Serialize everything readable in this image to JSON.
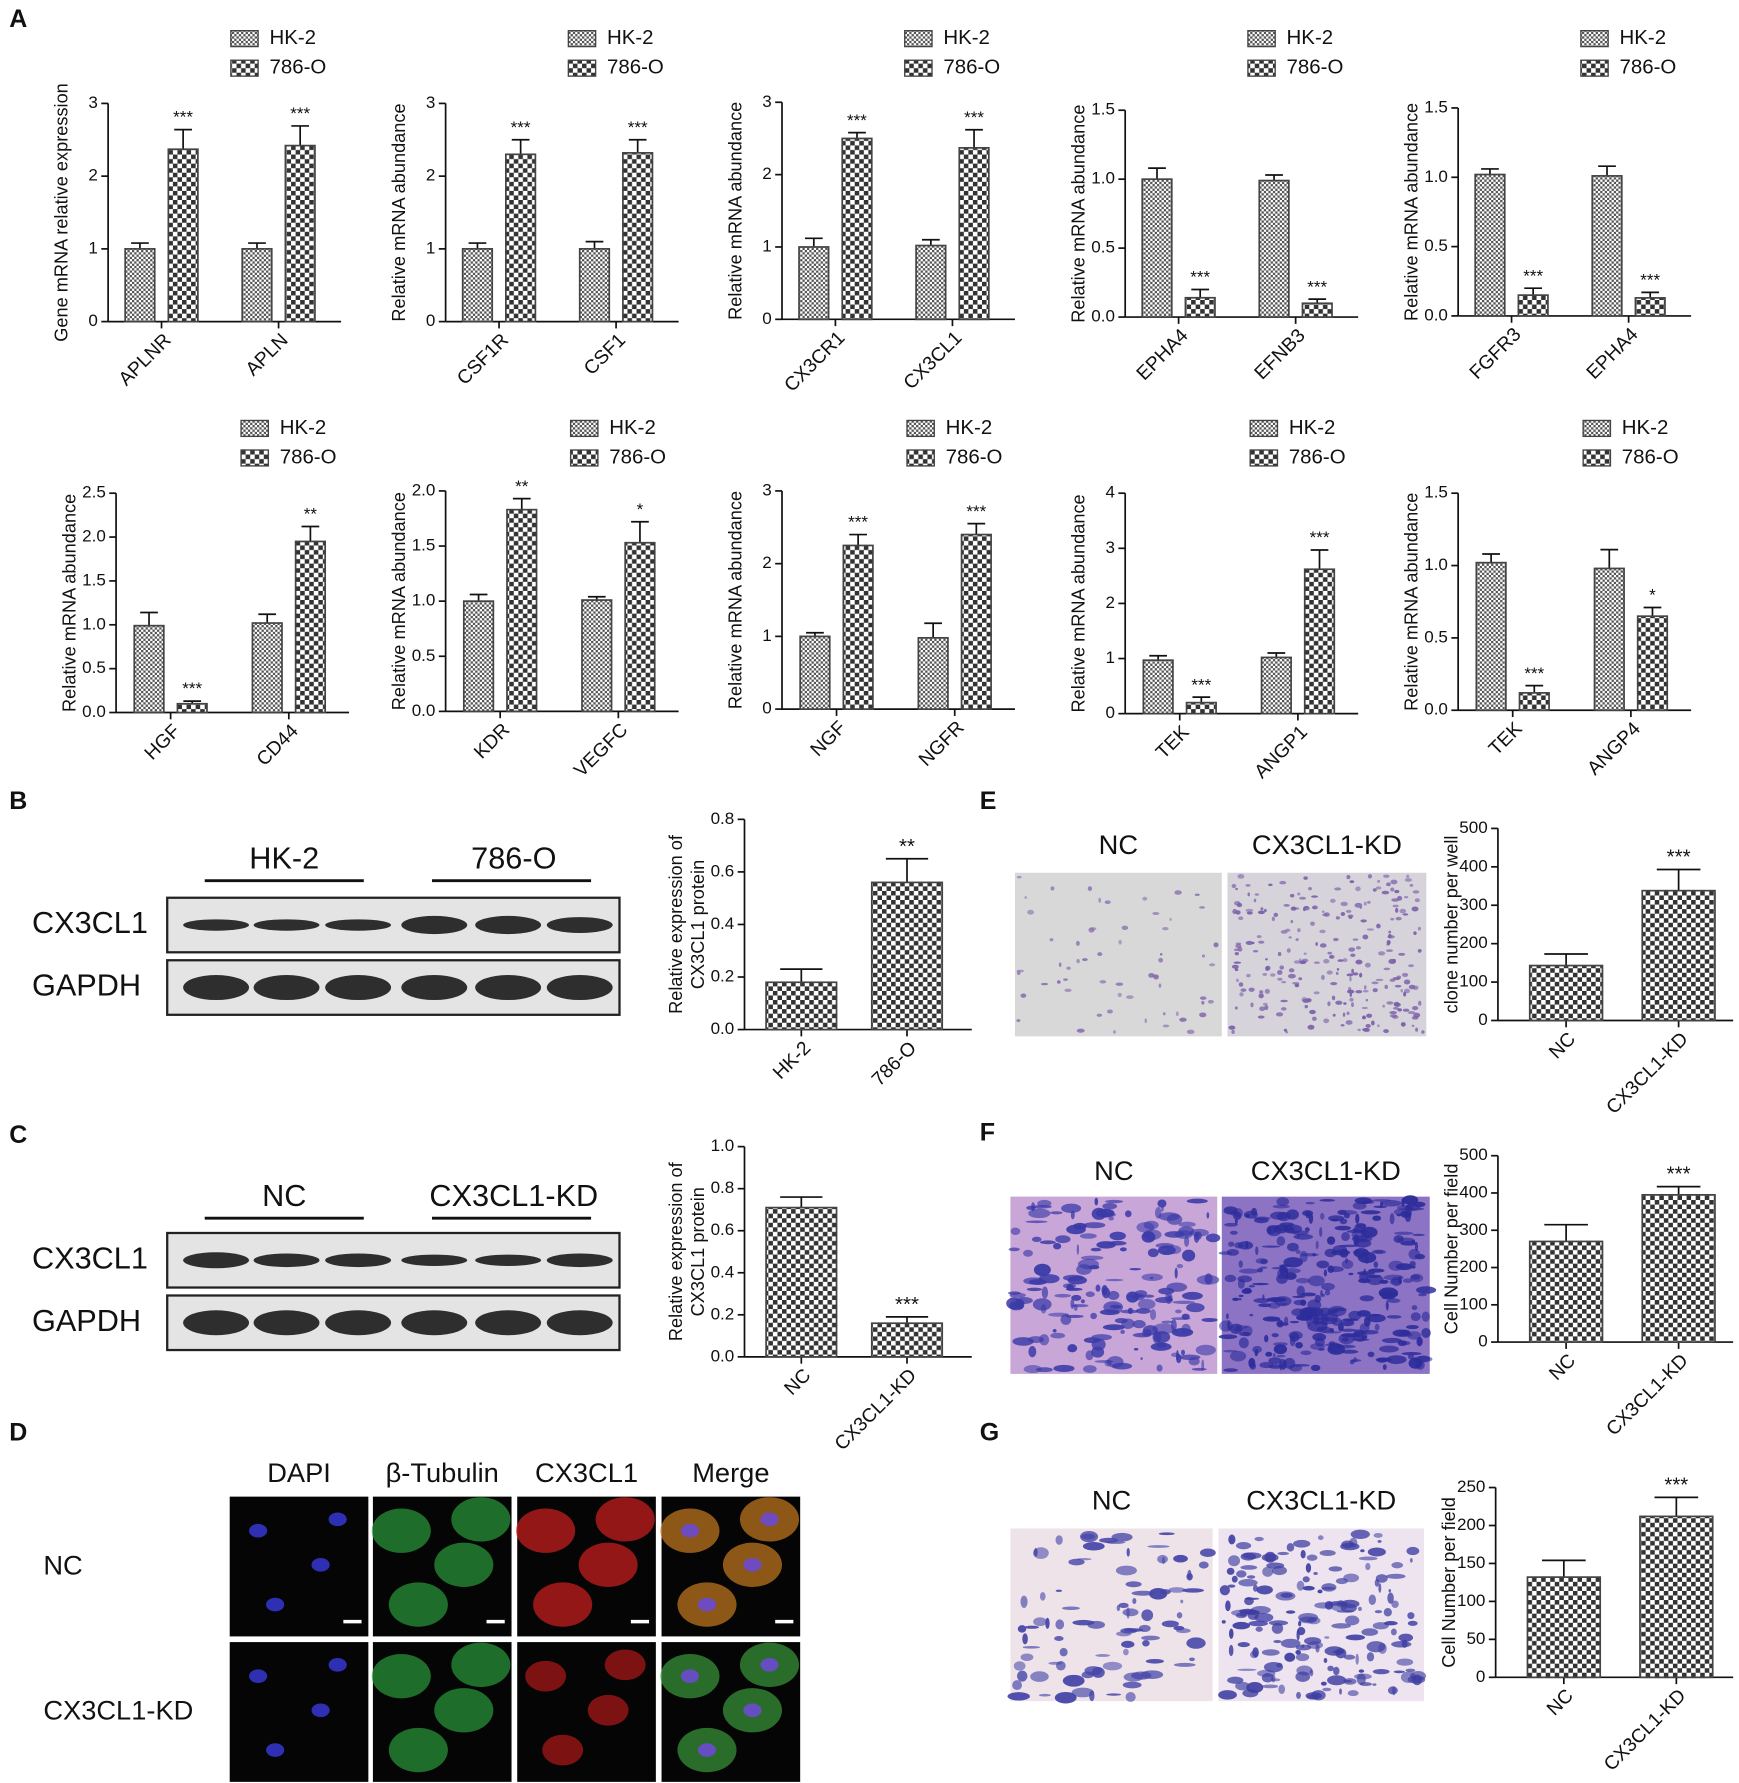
{
  "panel_labels": [
    "A",
    "B",
    "C",
    "D",
    "E",
    "F",
    "G"
  ],
  "blot_b": {
    "groups": [
      "HK-2",
      "786-O"
    ],
    "rows": [
      "CX3CL1",
      "GAPDH"
    ]
  },
  "blot_c": {
    "groups": [
      "NC",
      "CX3CL1-KD"
    ],
    "rows": [
      "CX3CL1",
      "GAPDH"
    ]
  },
  "immunofluorescence_d": {
    "columns": [
      "DAPI",
      "β-Tubulin",
      "CX3CL1",
      "Merge"
    ],
    "rows": [
      "NC",
      "CX3CL1-KD"
    ]
  },
  "micrographs_e": {
    "columns": [
      "NC",
      "CX3CL1-KD"
    ]
  },
  "micrographs_f": {
    "columns": [
      "NC",
      "CX3CL1-KD"
    ]
  },
  "micrographs_g": {
    "columns": [
      "NC",
      "CX3CL1-KD"
    ]
  },
  "chart_data": [
    {
      "type": "bar",
      "ylabel": [
        "Gene mRNA relative expression"
      ],
      "categories": [
        "APLNR",
        "APLN"
      ],
      "ylim": [
        0,
        3
      ],
      "yticks": [
        0,
        1,
        2,
        3
      ],
      "series": [
        {
          "name": "HK-2",
          "color": "#444444",
          "pattern": "fine",
          "values": [
            1.0,
            1.0
          ],
          "errors": [
            0.08,
            0.08
          ],
          "significance": [
            null,
            null
          ]
        },
        {
          "name": "786-O",
          "color": "#444444",
          "pattern": "checker",
          "values": [
            2.37,
            2.42
          ],
          "errors": [
            0.27,
            0.27
          ],
          "significance": [
            "***",
            "***"
          ]
        }
      ]
    },
    {
      "type": "bar",
      "ylabel": [
        "Relative mRNA abundance"
      ],
      "categories": [
        "CSF1R",
        "CSF1"
      ],
      "ylim": [
        0,
        3
      ],
      "yticks": [
        0,
        1,
        2,
        3
      ],
      "series": [
        {
          "name": "HK-2",
          "color": "#444444",
          "pattern": "fine",
          "values": [
            1.0,
            1.0
          ],
          "errors": [
            0.08,
            0.1
          ],
          "significance": [
            null,
            null
          ]
        },
        {
          "name": "786-O",
          "color": "#444444",
          "pattern": "checker",
          "values": [
            2.3,
            2.32
          ],
          "errors": [
            0.2,
            0.18
          ],
          "significance": [
            "***",
            "***"
          ]
        }
      ]
    },
    {
      "type": "bar",
      "ylabel": [
        "Relative mRNA abundance"
      ],
      "categories": [
        "CX3CR1",
        "CX3CL1"
      ],
      "ylim": [
        0,
        3
      ],
      "yticks": [
        0,
        1,
        2,
        3
      ],
      "series": [
        {
          "name": "HK-2",
          "color": "#444444",
          "pattern": "fine",
          "values": [
            1.0,
            1.02
          ],
          "errors": [
            0.12,
            0.08
          ],
          "significance": [
            null,
            null
          ]
        },
        {
          "name": "786-O",
          "color": "#444444",
          "pattern": "checker",
          "values": [
            2.5,
            2.37
          ],
          "errors": [
            0.08,
            0.25
          ],
          "significance": [
            "***",
            "***"
          ]
        }
      ]
    },
    {
      "type": "bar",
      "ylabel": [
        "Relative mRNA abundance"
      ],
      "categories": [
        "EPHA4",
        "EFNB3"
      ],
      "ylim": [
        0,
        1.5
      ],
      "yticks": [
        {
          "value": 0,
          "label": "0.0"
        },
        {
          "value": 0.5,
          "label": "0.5"
        },
        {
          "value": 1,
          "label": "1.0"
        },
        {
          "value": 1.5,
          "label": "1.5"
        }
      ],
      "series": [
        {
          "name": "HK-2",
          "color": "#444444",
          "pattern": "fine",
          "values": [
            1.0,
            0.99
          ],
          "errors": [
            0.08,
            0.04
          ],
          "significance": [
            null,
            null
          ]
        },
        {
          "name": "786-O",
          "color": "#444444",
          "pattern": "checker",
          "values": [
            0.14,
            0.1
          ],
          "errors": [
            0.06,
            0.03
          ],
          "significance": [
            "***",
            "***"
          ]
        }
      ]
    },
    {
      "type": "bar",
      "ylabel": [
        "Relative mRNA abundance"
      ],
      "categories": [
        "FGFR3",
        "EPHA4"
      ],
      "ylim": [
        0,
        1.5
      ],
      "yticks": [
        {
          "value": 0,
          "label": "0.0"
        },
        {
          "value": 0.5,
          "label": "0.5"
        },
        {
          "value": 1,
          "label": "1.0"
        },
        {
          "value": 1.5,
          "label": "1.5"
        }
      ],
      "series": [
        {
          "name": "HK-2",
          "color": "#444444",
          "pattern": "fine",
          "values": [
            1.02,
            1.01
          ],
          "errors": [
            0.04,
            0.07
          ],
          "significance": [
            null,
            null
          ]
        },
        {
          "name": "786-O",
          "color": "#444444",
          "pattern": "checker",
          "values": [
            0.15,
            0.13
          ],
          "errors": [
            0.05,
            0.04
          ],
          "significance": [
            "***",
            "***"
          ]
        }
      ]
    },
    {
      "type": "bar",
      "ylabel": [
        "Relative mRNA abundance"
      ],
      "categories": [
        "HGF",
        "CD44"
      ],
      "ylim": [
        0,
        2.5
      ],
      "yticks": [
        {
          "value": 0,
          "label": "0.0"
        },
        {
          "value": 0.5,
          "label": "0.5"
        },
        {
          "value": 1,
          "label": "1.0"
        },
        {
          "value": 1.5,
          "label": "1.5"
        },
        {
          "value": 2,
          "label": "2.0"
        },
        2.5
      ],
      "series": [
        {
          "name": "HK-2",
          "color": "#444444",
          "pattern": "fine",
          "values": [
            0.99,
            1.02
          ],
          "errors": [
            0.15,
            0.1
          ],
          "significance": [
            null,
            null
          ]
        },
        {
          "name": "786-O",
          "color": "#444444",
          "pattern": "checker",
          "values": [
            0.1,
            1.95
          ],
          "errors": [
            0.03,
            0.17
          ],
          "significance": [
            "***",
            "**"
          ]
        }
      ]
    },
    {
      "type": "bar",
      "ylabel": [
        "Relative mRNA abundance"
      ],
      "categories": [
        "KDR",
        "VEGFC"
      ],
      "ylim": [
        0,
        2
      ],
      "yticks": [
        {
          "value": 0,
          "label": "0.0"
        },
        {
          "value": 0.5,
          "label": "0.5"
        },
        {
          "value": 1,
          "label": "1.0"
        },
        {
          "value": 1.5,
          "label": "1.5"
        },
        {
          "value": 2,
          "label": "2.0"
        }
      ],
      "series": [
        {
          "name": "HK-2",
          "color": "#444444",
          "pattern": "fine",
          "values": [
            1.0,
            1.01
          ],
          "errors": [
            0.06,
            0.03
          ],
          "significance": [
            null,
            null
          ]
        },
        {
          "name": "786-O",
          "color": "#444444",
          "pattern": "checker",
          "values": [
            1.83,
            1.53
          ],
          "errors": [
            0.1,
            0.19
          ],
          "significance": [
            "**",
            "*"
          ]
        }
      ]
    },
    {
      "type": "bar",
      "ylabel": [
        "Relative mRNA abundance"
      ],
      "categories": [
        "NGF",
        "NGFR"
      ],
      "ylim": [
        0,
        3
      ],
      "yticks": [
        0,
        1,
        2,
        3
      ],
      "series": [
        {
          "name": "HK-2",
          "color": "#444444",
          "pattern": "fine",
          "values": [
            1.0,
            0.98
          ],
          "errors": [
            0.05,
            0.2
          ],
          "significance": [
            null,
            null
          ]
        },
        {
          "name": "786-O",
          "color": "#444444",
          "pattern": "checker",
          "values": [
            2.25,
            2.4
          ],
          "errors": [
            0.15,
            0.15
          ],
          "significance": [
            "***",
            "***"
          ]
        }
      ]
    },
    {
      "type": "bar",
      "ylabel": [
        "Relative mRNA abundance"
      ],
      "categories": [
        "TEK",
        "ANGP1"
      ],
      "ylim": [
        0,
        4
      ],
      "yticks": [
        0,
        1,
        2,
        3,
        4
      ],
      "series": [
        {
          "name": "HK-2",
          "color": "#444444",
          "pattern": "fine",
          "values": [
            0.97,
            1.02
          ],
          "errors": [
            0.08,
            0.08
          ],
          "significance": [
            null,
            null
          ]
        },
        {
          "name": "786-O",
          "color": "#444444",
          "pattern": "checker",
          "values": [
            0.2,
            2.62
          ],
          "errors": [
            0.1,
            0.35
          ],
          "significance": [
            "***",
            "***"
          ]
        }
      ]
    },
    {
      "type": "bar",
      "ylabel": [
        "Relative mRNA abundance"
      ],
      "categories": [
        "TEK",
        "ANGP4"
      ],
      "ylim": [
        0,
        1.5
      ],
      "yticks": [
        {
          "value": 0,
          "label": "0.0"
        },
        {
          "value": 0.5,
          "label": "0.5"
        },
        {
          "value": 1,
          "label": "1.0"
        },
        {
          "value": 1.5,
          "label": "1.5"
        }
      ],
      "series": [
        {
          "name": "HK-2",
          "color": "#444444",
          "pattern": "fine",
          "values": [
            1.02,
            0.98
          ],
          "errors": [
            0.06,
            0.13
          ],
          "significance": [
            null,
            null
          ]
        },
        {
          "name": "786-O",
          "color": "#444444",
          "pattern": "checker",
          "values": [
            0.12,
            0.65
          ],
          "errors": [
            0.05,
            0.06
          ],
          "significance": [
            "***",
            "*"
          ]
        }
      ]
    },
    {
      "type": "bar",
      "ylabel": [
        "Relative expression of",
        "CX3CL1 protein"
      ],
      "categories": [
        "HK-2",
        "786-O"
      ],
      "ylim": [
        0,
        0.8
      ],
      "yticks": [
        {
          "value": 0,
          "label": "0.0"
        },
        0.2,
        0.4,
        0.6,
        0.8
      ],
      "series": [
        {
          "color": "#444444",
          "pattern": "checker",
          "values": [
            0.18,
            0.56
          ],
          "errors": [
            0.05,
            0.09
          ],
          "significance": [
            null,
            "**"
          ]
        }
      ]
    },
    {
      "type": "bar",
      "ylabel": [
        "Relative expression of",
        "CX3CL1 protein"
      ],
      "categories": [
        "NC",
        "CX3CL1-KD"
      ],
      "ylim": [
        0,
        1
      ],
      "yticks": [
        {
          "value": 0,
          "label": "0.0"
        },
        0.2,
        0.4,
        0.6,
        0.8,
        {
          "value": 1,
          "label": "1.0"
        }
      ],
      "series": [
        {
          "color": "#444444",
          "pattern": "checker",
          "values": [
            0.71,
            0.16
          ],
          "errors": [
            0.05,
            0.03
          ],
          "significance": [
            null,
            "***"
          ]
        }
      ]
    },
    {
      "type": "bar",
      "ylabel": [
        "clone number per well"
      ],
      "categories": [
        "NC",
        "CX3CL1-KD"
      ],
      "ylim": [
        0,
        500
      ],
      "yticks": [
        0,
        100,
        200,
        300,
        400,
        500
      ],
      "series": [
        {
          "color": "#444444",
          "pattern": "checker",
          "values": [
            143,
            338
          ],
          "errors": [
            30,
            55
          ],
          "significance": [
            null,
            "***"
          ]
        }
      ]
    },
    {
      "type": "bar",
      "ylabel": [
        "Cell Number per field"
      ],
      "categories": [
        "NC",
        "CX3CL1-KD"
      ],
      "ylim": [
        0,
        500
      ],
      "yticks": [
        0,
        100,
        200,
        300,
        400,
        500
      ],
      "series": [
        {
          "color": "#444444",
          "pattern": "checker",
          "values": [
            270,
            395
          ],
          "errors": [
            45,
            22
          ],
          "significance": [
            null,
            "***"
          ]
        }
      ]
    },
    {
      "type": "bar",
      "ylabel": [
        "Cell Number per field"
      ],
      "categories": [
        "NC",
        "CX3CL1-KD"
      ],
      "ylim": [
        0,
        250
      ],
      "yticks": [
        0,
        50,
        100,
        150,
        200,
        250
      ],
      "series": [
        {
          "color": "#444444",
          "pattern": "checker",
          "values": [
            132,
            212
          ],
          "errors": [
            22,
            25
          ],
          "significance": [
            null,
            "***"
          ]
        }
      ]
    }
  ]
}
